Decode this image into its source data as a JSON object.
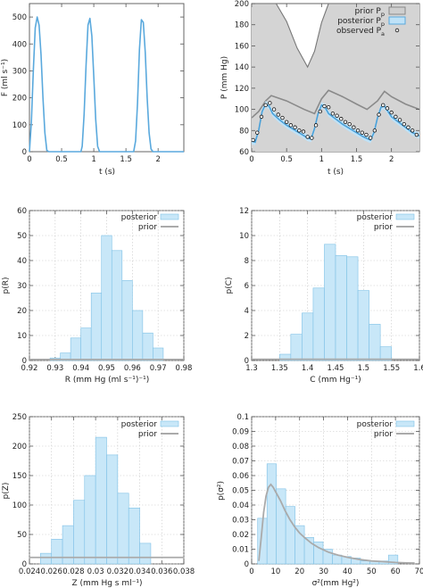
{
  "chart_data": [
    {
      "id": "flow",
      "type": "line",
      "xlabel": "t (s)",
      "ylabel": "F (ml s⁻¹)",
      "xlim": [
        0,
        2.4
      ],
      "ylim": [
        0,
        550
      ],
      "xticks": [
        0,
        0.5,
        1,
        1.5,
        2
      ],
      "yticks": [
        0,
        100,
        200,
        300,
        400,
        500
      ],
      "xtick_labels": [
        "0",
        "0.5",
        "1",
        "1.5",
        "2"
      ],
      "ytick_labels": [
        "0",
        "100",
        "200",
        "300",
        "400",
        "500"
      ],
      "grid": false,
      "series": [
        {
          "color": "#5aa9dd",
          "x": [
            0.0,
            0.03,
            0.06,
            0.09,
            0.12,
            0.15,
            0.18,
            0.21,
            0.24,
            0.27,
            0.3,
            0.6,
            0.8,
            0.82,
            0.85,
            0.88,
            0.91,
            0.94,
            0.97,
            1.0,
            1.03,
            1.06,
            1.09,
            1.12,
            1.55,
            1.62,
            1.65,
            1.68,
            1.71,
            1.74,
            1.77,
            1.8,
            1.83,
            1.86,
            1.89,
            1.92,
            2.4
          ],
          "y": [
            0,
            110,
            300,
            460,
            500,
            470,
            360,
            200,
            70,
            5,
            0,
            0,
            0,
            20,
            140,
            320,
            470,
            495,
            430,
            280,
            120,
            20,
            0,
            0,
            0,
            0,
            40,
            180,
            380,
            490,
            480,
            370,
            200,
            70,
            10,
            0,
            0
          ]
        }
      ]
    },
    {
      "id": "pressure",
      "type": "line",
      "xlabel": "t (s)",
      "ylabel": "P (mm Hg)",
      "xlim": [
        0,
        2.4
      ],
      "ylim": [
        60,
        200
      ],
      "xticks": [
        0,
        0.5,
        1,
        1.5,
        2
      ],
      "yticks": [
        60,
        80,
        100,
        120,
        140,
        160,
        180,
        200
      ],
      "xtick_labels": [
        "0",
        "0.5",
        "1",
        "1.5",
        "2"
      ],
      "ytick_labels": [
        "60",
        "80",
        "100",
        "120",
        "140",
        "160",
        "180",
        "200"
      ],
      "grid": false,
      "legend_position": "top-right",
      "legend": [
        {
          "label": "prior P",
          "sub": "p",
          "kind": "band",
          "fill": "#cfcfcf",
          "stroke": "#888888"
        },
        {
          "label": "posterior P",
          "sub": "p",
          "kind": "band",
          "fill": "#bfe2f7",
          "stroke": "#5aa9dd"
        },
        {
          "label": "observed P",
          "sub": "a",
          "kind": "points"
        }
      ],
      "prior_band": {
        "x": [
          0.0,
          0.1,
          0.2,
          0.35,
          0.5,
          0.65,
          0.8,
          0.9,
          1.0,
          1.1,
          1.2,
          1.35,
          1.5,
          1.65,
          1.8,
          1.9,
          2.0,
          2.1,
          2.2,
          2.4
        ],
        "upper": [
          200,
          200,
          200,
          200,
          183,
          158,
          140,
          155,
          182,
          200,
          200,
          200,
          200,
          200,
          200,
          200,
          200,
          200,
          200,
          200
        ],
        "lower": [
          60,
          60,
          60,
          60,
          60,
          60,
          60,
          60,
          60,
          60,
          60,
          60,
          60,
          60,
          60,
          60,
          60,
          60,
          60,
          60
        ]
      },
      "prior_mean": {
        "x": [
          0.0,
          0.1,
          0.2,
          0.28,
          0.5,
          0.75,
          0.9,
          1.0,
          1.1,
          1.3,
          1.5,
          1.65,
          1.8,
          1.9,
          2.0,
          2.2,
          2.4
        ],
        "y": [
          92,
          98,
          108,
          113,
          108,
          100,
          96,
          110,
          118,
          112,
          105,
          100,
          108,
          117,
          112,
          105,
          100
        ]
      },
      "posterior": {
        "x": [
          0.0,
          0.05,
          0.1,
          0.15,
          0.2,
          0.25,
          0.3,
          0.4,
          0.5,
          0.6,
          0.7,
          0.8,
          0.85,
          0.9,
          0.95,
          1.0,
          1.05,
          1.1,
          1.2,
          1.3,
          1.4,
          1.5,
          1.6,
          1.7,
          1.75,
          1.8,
          1.85,
          1.9,
          1.95,
          2.0,
          2.1,
          2.2,
          2.3,
          2.4
        ],
        "y": [
          70,
          69,
          80,
          98,
          105,
          103,
          96,
          90,
          85,
          81,
          77,
          73,
          72,
          82,
          96,
          104,
          102,
          96,
          91,
          86,
          82,
          78,
          74,
          71,
          78,
          92,
          102,
          103,
          98,
          93,
          88,
          83,
          78,
          75
        ],
        "band_halfwidth": 3
      },
      "observed": {
        "x": [
          0.02,
          0.08,
          0.14,
          0.2,
          0.26,
          0.32,
          0.38,
          0.44,
          0.5,
          0.56,
          0.62,
          0.68,
          0.74,
          0.8,
          0.86,
          0.92,
          0.98,
          1.04,
          1.1,
          1.16,
          1.22,
          1.28,
          1.34,
          1.4,
          1.46,
          1.52,
          1.58,
          1.64,
          1.7,
          1.76,
          1.82,
          1.88,
          1.94,
          2.0,
          2.06,
          2.12,
          2.18,
          2.24,
          2.3,
          2.36
        ],
        "y": [
          71,
          78,
          93,
          104,
          106,
          100,
          95,
          92,
          88,
          85,
          83,
          80,
          79,
          74,
          73,
          85,
          98,
          103,
          102,
          96,
          94,
          91,
          88,
          86,
          83,
          80,
          78,
          76,
          73,
          80,
          95,
          104,
          101,
          97,
          93,
          90,
          86,
          83,
          80,
          76
        ]
      }
    },
    {
      "id": "R",
      "type": "bar",
      "xlabel": "R (mm Hg (ml s⁻¹)⁻¹)",
      "ylabel": "p(R)",
      "xlim": [
        0.92,
        0.98
      ],
      "ylim": [
        0,
        60
      ],
      "xticks": [
        0.92,
        0.93,
        0.94,
        0.95,
        0.96,
        0.97,
        0.98
      ],
      "yticks": [
        0,
        10,
        20,
        30,
        40,
        50,
        60
      ],
      "xtick_labels": [
        "0.92",
        "0.93",
        "0.94",
        "0.95",
        "0.96",
        "0.97",
        "0.98"
      ],
      "ytick_labels": [
        "0",
        "10",
        "20",
        "30",
        "40",
        "50",
        "60"
      ],
      "grid": true,
      "legend_position": "top-right",
      "legend": [
        {
          "label": "posterior",
          "kind": "bar"
        },
        {
          "label": "prior",
          "kind": "line"
        }
      ],
      "bin_width": 0.004,
      "bins": [
        0.928,
        0.932,
        0.936,
        0.94,
        0.944,
        0.948,
        0.952,
        0.956,
        0.96,
        0.964,
        0.968
      ],
      "values": [
        1,
        3,
        9,
        13,
        27,
        50,
        44,
        32,
        20,
        11,
        5
      ],
      "prior_value": 0.4
    },
    {
      "id": "C",
      "type": "bar",
      "xlabel": "C (mm Hg⁻¹)",
      "ylabel": "p(C)",
      "xlim": [
        1.3,
        1.6
      ],
      "ylim": [
        0,
        12
      ],
      "xticks": [
        1.3,
        1.35,
        1.4,
        1.45,
        1.5,
        1.55,
        1.6
      ],
      "yticks": [
        0,
        2,
        4,
        6,
        8,
        10,
        12
      ],
      "xtick_labels": [
        "1.3",
        "1.35",
        "1.4",
        "1.45",
        "1.5",
        "1.55",
        "1.6"
      ],
      "ytick_labels": [
        "0",
        "2",
        "4",
        "6",
        "8",
        "10",
        "12"
      ],
      "grid": true,
      "legend_position": "top-right",
      "legend": [
        {
          "label": "posterior",
          "kind": "bar"
        },
        {
          "label": "prior",
          "kind": "line"
        }
      ],
      "bin_width": 0.02,
      "bins": [
        1.35,
        1.37,
        1.39,
        1.41,
        1.43,
        1.45,
        1.47,
        1.49,
        1.51,
        1.53
      ],
      "values": [
        0.5,
        2.1,
        3.8,
        5.8,
        9.3,
        8.4,
        8.3,
        5.6,
        2.9,
        1.1
      ],
      "prior_value": 0.1
    },
    {
      "id": "Z",
      "type": "bar",
      "xlabel": "Z (mm Hg s ml⁻¹)",
      "ylabel": "p(Z)",
      "xlim": [
        0.024,
        0.038
      ],
      "ylim": [
        0,
        250
      ],
      "xticks": [
        0.024,
        0.026,
        0.028,
        0.03,
        0.032,
        0.034,
        0.036,
        0.038
      ],
      "yticks": [
        0,
        50,
        100,
        150,
        200,
        250
      ],
      "xtick_labels": [
        "0.024",
        "0.026",
        "0.028",
        "0.03",
        "0.032",
        "0.034",
        "0.036",
        "0.038"
      ],
      "ytick_labels": [
        "0",
        "50",
        "100",
        "150",
        "200",
        "250"
      ],
      "grid": true,
      "legend_position": "top-right",
      "legend": [
        {
          "label": "posterior",
          "kind": "bar"
        },
        {
          "label": "prior",
          "kind": "line"
        }
      ],
      "bin_width": 0.001,
      "bins": [
        0.025,
        0.026,
        0.027,
        0.028,
        0.029,
        0.03,
        0.031,
        0.032,
        0.033,
        0.034
      ],
      "values": [
        18,
        42,
        65,
        108,
        150,
        215,
        185,
        120,
        95,
        35
      ],
      "prior_value": 11
    },
    {
      "id": "sigma2",
      "type": "bar",
      "xlabel": "σ²(mm Hg²)",
      "ylabel": "p(σ²)",
      "xlim": [
        0,
        70
      ],
      "ylim": [
        0,
        0.1
      ],
      "xticks": [
        0,
        10,
        20,
        30,
        40,
        50,
        60,
        70
      ],
      "yticks": [
        0,
        0.01,
        0.02,
        0.03,
        0.04,
        0.05,
        0.06,
        0.07,
        0.08,
        0.09,
        0.1
      ],
      "xtick_labels": [
        "0",
        "10",
        "20",
        "30",
        "40",
        "50",
        "60",
        "70"
      ],
      "ytick_labels": [
        "0",
        "0.01",
        "0.02",
        "0.03",
        "0.04",
        "0.05",
        "0.06",
        "0.07",
        "0.08",
        "0.09",
        "0.1"
      ],
      "grid": true,
      "legend_position": "top-right",
      "legend": [
        {
          "label": "posterior",
          "kind": "bar"
        },
        {
          "label": "prior",
          "kind": "line"
        }
      ],
      "bin_width": 3.9,
      "bins": [
        2.5,
        6.4,
        10.3,
        14.2,
        18.1,
        22.0,
        25.9,
        29.8,
        33.7,
        37.6,
        41.5,
        45.4,
        49.3,
        53.2,
        57.1
      ],
      "values": [
        0.031,
        0.068,
        0.051,
        0.039,
        0.026,
        0.018,
        0.015,
        0.01,
        0.006,
        0.005,
        0.004,
        0.002,
        0.002,
        0.002,
        0.006
      ],
      "prior_curve": {
        "x": [
          3,
          4,
          5,
          6,
          7,
          8,
          9,
          10,
          12,
          14,
          16,
          18,
          20,
          22,
          25,
          28,
          32,
          36,
          40,
          45,
          50,
          55,
          60,
          65,
          68
        ],
        "y": [
          0.002,
          0.018,
          0.035,
          0.046,
          0.052,
          0.054,
          0.052,
          0.049,
          0.043,
          0.036,
          0.03,
          0.025,
          0.021,
          0.018,
          0.014,
          0.011,
          0.008,
          0.006,
          0.0045,
          0.003,
          0.002,
          0.0015,
          0.001,
          0.0007,
          0.0006
        ]
      }
    }
  ]
}
